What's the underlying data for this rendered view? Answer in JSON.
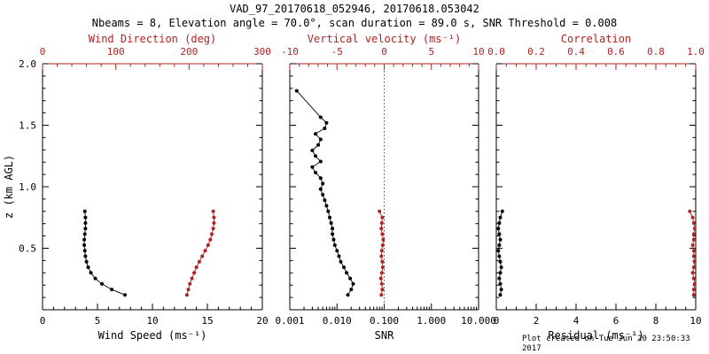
{
  "title": "VAD_97_20170618_052946, 20170618.053042",
  "subtitle": "Nbeams = 8, Elevation angle = 70.0°, scan duration = 89.0 s, SNR Threshold = 0.008",
  "footer": "Plot created on Tue Jun 20 23:50:33 2017",
  "colors": {
    "axis": "#000000",
    "accent": "#b22222",
    "background": "#ffffff"
  },
  "y_axis": {
    "label": "z (km AGL)",
    "lim": [
      0,
      2
    ],
    "ticks": [
      0,
      0.5,
      1.0,
      1.5,
      2.0
    ],
    "tick_labels": [
      "",
      "0.5",
      "1.0",
      "1.5",
      "2.0"
    ],
    "minor_step": 0.1
  },
  "chart_data": [
    {
      "type": "scatter",
      "name": "wind",
      "top_label": "Wind Direction (deg)",
      "bottom_label": "Wind Speed (ms⁻¹)",
      "bottom_axis": {
        "scale": "linear",
        "lim": [
          0,
          20
        ],
        "ticks": [
          0,
          5,
          10,
          15,
          20
        ],
        "tick_labels": [
          "0",
          "5",
          "10",
          "15",
          "20"
        ],
        "minor_step": 1
      },
      "top_axis": {
        "scale": "linear",
        "lim": [
          0,
          300
        ],
        "ticks": [
          0,
          100,
          200,
          300
        ],
        "tick_labels": [
          "0",
          "100",
          "200",
          "300"
        ],
        "minor_step": 20
      },
      "series": [
        {
          "name": "wind-speed",
          "axis": "bottom",
          "color": "#000000",
          "z": [
            0.12,
            0.165,
            0.21,
            0.255,
            0.3,
            0.345,
            0.39,
            0.435,
            0.48,
            0.525,
            0.57,
            0.615,
            0.66,
            0.705,
            0.75,
            0.8
          ],
          "values": [
            7.5,
            6.3,
            5.4,
            4.8,
            4.4,
            4.15,
            4.0,
            3.9,
            3.85,
            3.8,
            3.8,
            3.85,
            3.9,
            3.9,
            3.9,
            3.85
          ]
        },
        {
          "name": "wind-direction",
          "axis": "top",
          "color": "#b22222",
          "z": [
            0.12,
            0.165,
            0.21,
            0.255,
            0.3,
            0.345,
            0.39,
            0.435,
            0.48,
            0.525,
            0.57,
            0.615,
            0.66,
            0.705,
            0.75,
            0.8
          ],
          "values": [
            197,
            199,
            201,
            204,
            207,
            210,
            214,
            218,
            222,
            226,
            229,
            231,
            233,
            234,
            234,
            233
          ]
        }
      ]
    },
    {
      "type": "scatter",
      "name": "snr",
      "top_label": "Vertical velocity (ms⁻¹)",
      "bottom_label": "SNR",
      "bottom_axis": {
        "scale": "log",
        "lim": [
          0.001,
          10
        ],
        "ticks": [
          0.001,
          0.01,
          0.1,
          1,
          10
        ],
        "tick_labels": [
          "0.001",
          "0.010",
          "0.100",
          "1.000",
          "10.000"
        ]
      },
      "top_axis": {
        "scale": "linear",
        "lim": [
          -10,
          10
        ],
        "ticks": [
          -10,
          -5,
          0,
          5,
          10
        ],
        "tick_labels": [
          "-10",
          "-5",
          "0",
          "5",
          "10"
        ],
        "minor_step": 1
      },
      "ref_line": {
        "axis": "top",
        "value": 0,
        "color": "#b22222",
        "style": "dotted"
      },
      "series": [
        {
          "name": "snr",
          "axis": "bottom",
          "color": "#000000",
          "z": [
            0.12,
            0.165,
            0.21,
            0.255,
            0.3,
            0.345,
            0.39,
            0.435,
            0.48,
            0.525,
            0.57,
            0.615,
            0.66,
            0.705,
            0.75,
            0.8,
            0.845,
            0.89,
            0.935,
            0.98,
            1.025,
            1.07,
            1.115,
            1.16,
            1.205,
            1.25,
            1.295,
            1.34,
            1.385,
            1.43,
            1.475,
            1.52,
            1.565,
            1.78
          ],
          "values": [
            0.017,
            0.02,
            0.022,
            0.019,
            0.016,
            0.014,
            0.012,
            0.011,
            0.01,
            0.009,
            0.0085,
            0.008,
            0.008,
            0.0075,
            0.007,
            0.0065,
            0.006,
            0.0055,
            0.005,
            0.0045,
            0.005,
            0.0045,
            0.0035,
            0.003,
            0.0045,
            0.0035,
            0.003,
            0.004,
            0.0045,
            0.0035,
            0.0055,
            0.006,
            0.0045,
            0.0014
          ]
        },
        {
          "name": "vertical-velocity",
          "axis": "top",
          "color": "#b22222",
          "z": [
            0.12,
            0.165,
            0.21,
            0.255,
            0.3,
            0.345,
            0.39,
            0.435,
            0.48,
            0.525,
            0.57,
            0.615,
            0.66,
            0.705,
            0.75,
            0.8
          ],
          "values": [
            -0.3,
            -0.2,
            -0.25,
            -0.35,
            -0.25,
            -0.15,
            -0.2,
            -0.3,
            -0.25,
            -0.15,
            -0.1,
            -0.2,
            -0.3,
            -0.25,
            -0.2,
            -0.5
          ]
        }
      ]
    },
    {
      "type": "scatter",
      "name": "residual",
      "top_label": "Correlation",
      "bottom_label": "Residual (ms⁻¹)",
      "bottom_axis": {
        "scale": "linear",
        "lim": [
          0,
          10
        ],
        "ticks": [
          0,
          2,
          4,
          6,
          8,
          10
        ],
        "tick_labels": [
          "0",
          "2",
          "4",
          "6",
          "8",
          "10"
        ],
        "minor_step": 0.5
      },
      "top_axis": {
        "scale": "linear",
        "lim": [
          0,
          1
        ],
        "ticks": [
          0,
          0.2,
          0.4,
          0.6,
          0.8,
          1.0
        ],
        "tick_labels": [
          "0.0",
          "0.2",
          "0.4",
          "0.6",
          "0.8",
          "1.0"
        ],
        "minor_step": 0.05
      },
      "series": [
        {
          "name": "residual",
          "axis": "bottom",
          "color": "#000000",
          "z": [
            0.12,
            0.165,
            0.21,
            0.255,
            0.3,
            0.345,
            0.39,
            0.435,
            0.48,
            0.525,
            0.57,
            0.615,
            0.66,
            0.705,
            0.75,
            0.8
          ],
          "values": [
            0.2,
            0.25,
            0.2,
            0.15,
            0.2,
            0.25,
            0.2,
            0.15,
            0.1,
            0.15,
            0.2,
            0.15,
            0.1,
            0.15,
            0.2,
            0.3
          ]
        },
        {
          "name": "correlation",
          "axis": "top",
          "color": "#b22222",
          "z": [
            0.12,
            0.165,
            0.21,
            0.255,
            0.3,
            0.345,
            0.39,
            0.435,
            0.48,
            0.525,
            0.57,
            0.615,
            0.66,
            0.705,
            0.75,
            0.8
          ],
          "values": [
            0.99,
            0.99,
            0.995,
            0.99,
            0.985,
            0.99,
            0.995,
            0.99,
            0.99,
            0.985,
            0.99,
            0.99,
            0.995,
            0.99,
            0.985,
            0.97
          ]
        }
      ]
    }
  ]
}
